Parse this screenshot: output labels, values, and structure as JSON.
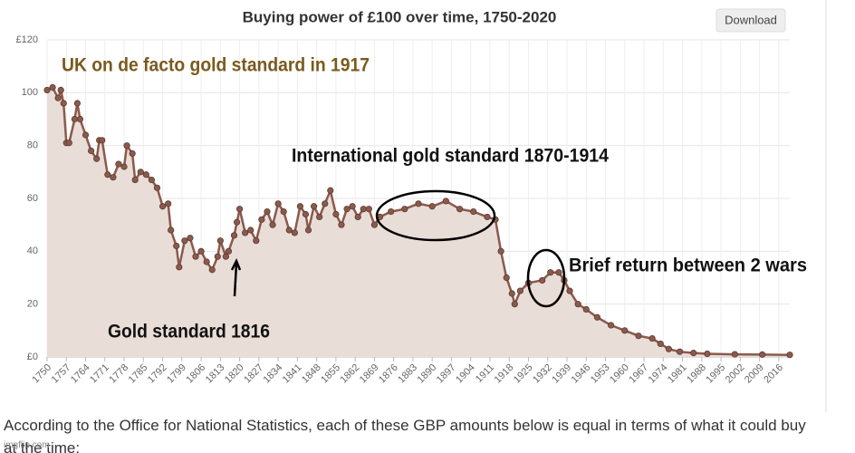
{
  "title": "Buying power of £100 over time, 1750-2020",
  "download": "Download",
  "note": "According to the Office for National Statistics, each of these GBP amounts below is equal in terms of what it could buy at the time:",
  "watermark": "imgflip.com",
  "chart_data": {
    "type": "line",
    "color": "#8a5a4c",
    "fill": "#e9ddd7",
    "grid": true,
    "x": [
      1750,
      1752,
      1754,
      1755,
      1756,
      1757,
      1758,
      1760,
      1761,
      1762,
      1764,
      1766,
      1768,
      1769,
      1770,
      1772,
      1774,
      1776,
      1778,
      1779,
      1781,
      1782,
      1784,
      1786,
      1788,
      1790,
      1792,
      1794,
      1795,
      1797,
      1798,
      1800,
      1802,
      1804,
      1806,
      1808,
      1810,
      1812,
      1813,
      1815,
      1816,
      1818,
      1819,
      1820,
      1822,
      1824,
      1826,
      1828,
      1830,
      1832,
      1834,
      1836,
      1838,
      1840,
      1842,
      1844,
      1845,
      1847,
      1849,
      1851,
      1853,
      1855,
      1857,
      1859,
      1861,
      1863,
      1865,
      1867,
      1869,
      1871,
      1875,
      1880,
      1885,
      1890,
      1895,
      1900,
      1905,
      1910,
      1913,
      1915,
      1917,
      1919,
      1920,
      1922,
      1925,
      1930,
      1933,
      1936,
      1938,
      1940,
      1943,
      1946,
      1950,
      1955,
      1960,
      1965,
      1970,
      1973,
      1976,
      1980,
      1985,
      1990,
      2000,
      2010,
      2020
    ],
    "values": [
      101,
      102,
      98,
      101,
      96,
      81,
      81,
      90,
      96,
      90,
      84,
      78,
      75,
      82,
      82,
      69,
      68,
      73,
      72,
      80,
      77,
      67,
      70,
      69,
      67,
      64,
      57,
      58,
      48,
      42,
      34,
      44,
      45,
      38,
      40,
      36,
      33,
      38,
      44,
      38,
      40,
      46,
      51,
      56,
      47,
      48,
      44,
      52,
      55,
      50,
      58,
      55,
      48,
      47,
      57,
      54,
      48,
      57,
      53,
      58,
      63,
      54,
      50,
      56,
      57,
      53,
      56,
      56,
      50,
      53,
      55,
      56,
      58,
      57,
      59,
      56,
      55,
      53,
      52,
      40,
      30,
      24,
      20,
      25,
      28,
      29,
      32,
      32,
      29,
      25,
      20,
      18,
      15,
      12,
      10,
      8,
      7,
      5,
      3,
      2,
      1.5,
      1.2,
      1,
      0.9,
      0.8
    ],
    "xlim": [
      1750,
      2020
    ],
    "xticks": [
      1750,
      1757,
      1764,
      1771,
      1778,
      1785,
      1792,
      1799,
      1806,
      1813,
      1820,
      1827,
      1834,
      1841,
      1848,
      1855,
      1862,
      1869,
      1876,
      1883,
      1890,
      1897,
      1904,
      1911,
      1918,
      1925,
      1932,
      1939,
      1946,
      1953,
      1960,
      1967,
      1974,
      1981,
      1988,
      1995,
      2002,
      2009,
      2016
    ],
    "ylim": [
      0,
      120
    ],
    "yticks": [
      {
        "value": 0,
        "label": "£0"
      },
      20,
      40,
      60,
      80,
      100,
      {
        "value": 120,
        "label": "£120"
      }
    ],
    "annotations": [
      "UK on de facto gold standard in 1917",
      "International gold standard 1870-1914",
      "Brief return between 2 wars",
      "Gold standard 1816"
    ]
  }
}
